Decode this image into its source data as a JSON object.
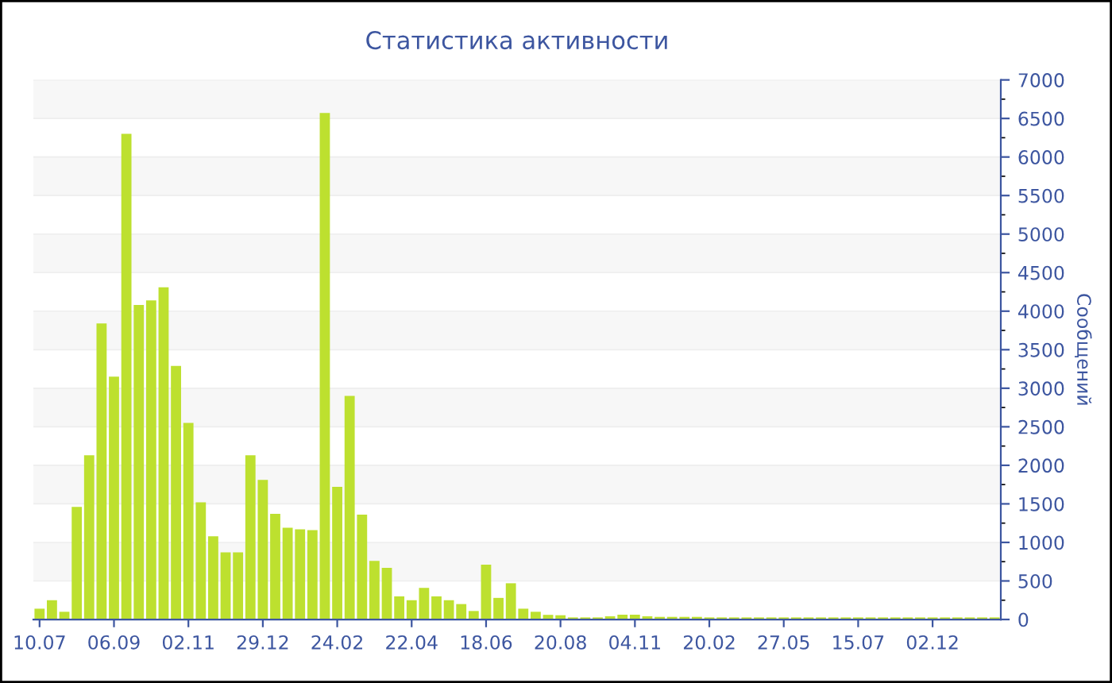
{
  "chart_data": {
    "type": "bar",
    "title": "Статистика активности",
    "ylabel": "Сообщений",
    "categories": [
      "10.07",
      null,
      null,
      null,
      null,
      null,
      "06.09",
      null,
      null,
      null,
      null,
      null,
      "02.11",
      null,
      null,
      null,
      null,
      null,
      "29.12",
      null,
      null,
      null,
      null,
      null,
      "24.02",
      null,
      null,
      null,
      null,
      null,
      "22.04",
      null,
      null,
      null,
      null,
      null,
      "18.06",
      null,
      null,
      null,
      null,
      null,
      "20.08",
      null,
      null,
      null,
      null,
      null,
      "04.11",
      null,
      null,
      null,
      null,
      null,
      "20.02",
      null,
      null,
      null,
      null,
      null,
      "27.05",
      null,
      null,
      null,
      null,
      null,
      "15.07",
      null,
      null,
      null,
      null,
      null,
      "02.12",
      null,
      null,
      null,
      null,
      null
    ],
    "values": [
      140,
      250,
      100,
      1460,
      2130,
      3840,
      3150,
      6300,
      4080,
      4140,
      4310,
      3290,
      2550,
      1520,
      1080,
      870,
      870,
      2130,
      1810,
      1370,
      1190,
      1170,
      1160,
      6570,
      1720,
      2900,
      1360,
      760,
      670,
      300,
      250,
      410,
      300,
      250,
      200,
      110,
      710,
      280,
      470,
      140,
      100,
      60,
      55,
      27,
      27,
      27,
      41,
      62,
      62,
      41,
      34,
      34,
      34,
      34,
      27,
      27,
      27,
      27,
      27,
      27,
      27,
      27,
      27,
      27,
      27,
      27,
      27,
      27,
      27,
      27,
      27,
      27,
      27,
      27,
      27,
      27,
      27,
      27
    ],
    "color": "#bde02f",
    "ylim": [
      0,
      7000
    ],
    "yticks": [
      0,
      500,
      1000,
      1500,
      2000,
      2500,
      3000,
      3500,
      4000,
      4500,
      5000,
      5500,
      6000,
      6500,
      7000
    ],
    "grid": "y"
  }
}
